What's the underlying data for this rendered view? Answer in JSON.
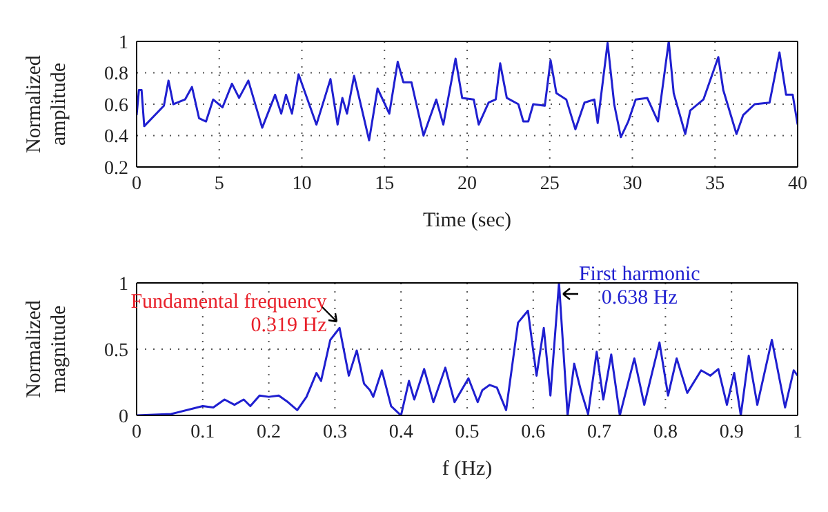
{
  "chart_data": [
    {
      "type": "line",
      "xlabel": "Time (sec)",
      "ylabel": "Normalized amplitude",
      "xlim": [
        0,
        40
      ],
      "xticks": [
        0,
        5,
        10,
        15,
        20,
        25,
        30,
        35,
        40
      ],
      "ylim": [
        0.2,
        1
      ],
      "yticks": [
        0.2,
        0.4,
        0.6,
        0.8,
        1
      ],
      "grid": true,
      "marker": "none",
      "line_style": "solid",
      "series": [
        {
          "color": "#1f1fd0",
          "x": [
            0,
            0.14,
            0.3,
            0.46,
            1.65,
            1.93,
            2.22,
            2.93,
            3.35,
            3.78,
            4.2,
            4.63,
            5.2,
            5.77,
            6.2,
            6.76,
            7.6,
            8.38,
            8.75,
            9.04,
            9.4,
            9.8,
            10.88,
            11.73,
            12.16,
            12.45,
            12.73,
            13.16,
            14.07,
            14.58,
            15.29,
            15.8,
            16.14,
            16.63,
            17.36,
            18.13,
            18.56,
            19.3,
            19.7,
            20.4,
            20.7,
            21.3,
            21.73,
            22.0,
            22.4,
            23.1,
            23.4,
            23.7,
            24.0,
            24.7,
            25.05,
            25.4,
            26.0,
            26.55,
            27.1,
            27.7,
            27.9,
            28.5,
            28.9,
            29.3,
            29.75,
            30.2,
            30.9,
            31.55,
            32.2,
            32.5,
            33.2,
            33.5,
            34.3,
            35.2,
            35.5,
            36.3,
            36.7,
            37.4,
            38.3,
            38.9,
            39.3,
            39.7,
            40
          ],
          "values": [
            0.53,
            0.69,
            0.69,
            0.46,
            0.59,
            0.75,
            0.6,
            0.63,
            0.71,
            0.51,
            0.49,
            0.63,
            0.58,
            0.73,
            0.64,
            0.75,
            0.45,
            0.66,
            0.54,
            0.66,
            0.54,
            0.79,
            0.47,
            0.76,
            0.47,
            0.64,
            0.54,
            0.78,
            0.37,
            0.7,
            0.54,
            0.87,
            0.74,
            0.74,
            0.4,
            0.63,
            0.47,
            0.89,
            0.64,
            0.63,
            0.47,
            0.61,
            0.63,
            0.86,
            0.64,
            0.6,
            0.49,
            0.49,
            0.6,
            0.59,
            0.88,
            0.67,
            0.63,
            0.44,
            0.61,
            0.63,
            0.48,
            0.99,
            0.6,
            0.39,
            0.49,
            0.63,
            0.64,
            0.49,
            1.0,
            0.67,
            0.41,
            0.56,
            0.63,
            0.9,
            0.69,
            0.41,
            0.53,
            0.6,
            0.61,
            0.93,
            0.66,
            0.66,
            0.47
          ]
        }
      ]
    },
    {
      "type": "line",
      "xlabel": "f (Hz)",
      "ylabel": "Normalized magnitude",
      "xlim": [
        0,
        1
      ],
      "xticks": [
        0,
        0.1,
        0.2,
        0.3,
        0.4,
        0.5,
        0.6,
        0.7,
        0.8,
        0.9,
        1
      ],
      "ylim": [
        0,
        1
      ],
      "yticks": [
        0,
        0.5,
        1
      ],
      "grid": true,
      "marker": "none",
      "line_style": "solid",
      "annotations": [
        {
          "text": "Fundamental frequency\n0.319 Hz",
          "x": 0.307,
          "y": 0.66
        },
        {
          "text": "First harmonic\n0.638 Hz",
          "x": 0.639,
          "y": 1.0
        }
      ],
      "series": [
        {
          "color": "#1f1fd0",
          "x": [
            0,
            0.052,
            0.1,
            0.116,
            0.133,
            0.148,
            0.162,
            0.172,
            0.186,
            0.2,
            0.215,
            0.229,
            0.243,
            0.257,
            0.272,
            0.279,
            0.293,
            0.307,
            0.321,
            0.333,
            0.344,
            0.353,
            0.358,
            0.371,
            0.385,
            0.4,
            0.412,
            0.42,
            0.435,
            0.449,
            0.467,
            0.481,
            0.502,
            0.516,
            0.523,
            0.534,
            0.545,
            0.559,
            0.577,
            0.592,
            0.605,
            0.616,
            0.626,
            0.639,
            0.652,
            0.662,
            0.672,
            0.683,
            0.696,
            0.706,
            0.718,
            0.731,
            0.753,
            0.768,
            0.791,
            0.804,
            0.817,
            0.833,
            0.854,
            0.868,
            0.88,
            0.893,
            0.904,
            0.914,
            0.926,
            0.939,
            0.961,
            0.981,
            0.994,
            1.0
          ],
          "values": [
            0,
            0.01,
            0.07,
            0.06,
            0.12,
            0.08,
            0.12,
            0.07,
            0.15,
            0.14,
            0.15,
            0.1,
            0.04,
            0.14,
            0.32,
            0.26,
            0.57,
            0.66,
            0.3,
            0.49,
            0.24,
            0.19,
            0.14,
            0.34,
            0.07,
            0,
            0.26,
            0.12,
            0.35,
            0.1,
            0.36,
            0.1,
            0.28,
            0.1,
            0.19,
            0.23,
            0.21,
            0.04,
            0.7,
            0.79,
            0.3,
            0.66,
            0.15,
            1.0,
            0,
            0.39,
            0.19,
            0.01,
            0.48,
            0.12,
            0.46,
            0,
            0.43,
            0.08,
            0.55,
            0.15,
            0.43,
            0.17,
            0.34,
            0.3,
            0.35,
            0.08,
            0.32,
            0,
            0.45,
            0.08,
            0.57,
            0.06,
            0.34,
            0.3
          ]
        }
      ]
    }
  ]
}
